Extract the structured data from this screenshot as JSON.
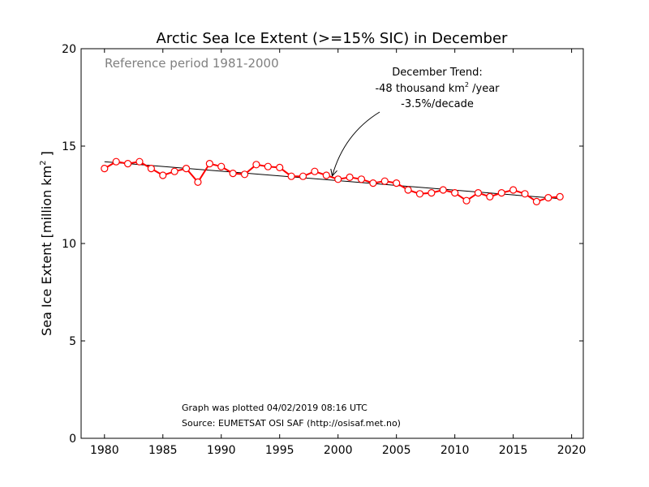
{
  "chart_data": {
    "type": "line",
    "title": "Arctic Sea Ice Extent (>=15% SIC) in December",
    "reference_text": "Reference period 1981-2000",
    "ylabel_main": "Sea Ice Extent [million km",
    "ylabel_sup": "2",
    "ylabel_end": " ]",
    "xlabel": "",
    "xlim": [
      1978,
      2021
    ],
    "ylim": [
      0,
      20
    ],
    "xticks": [
      1980,
      1985,
      1990,
      1995,
      2000,
      2005,
      2010,
      2015,
      2020
    ],
    "yticks": [
      0,
      5,
      10,
      15,
      20
    ],
    "grid": false,
    "series": [
      {
        "color": "#ff0000",
        "x": [
          1980,
          1981,
          1982,
          1983,
          1984,
          1985,
          1986,
          1987,
          1988,
          1989,
          1990,
          1991,
          1992,
          1993,
          1994,
          1995,
          1996,
          1997,
          1998,
          1999,
          2000,
          2001,
          2002,
          2003,
          2004,
          2005,
          2006,
          2007,
          2008,
          2009,
          2010,
          2011,
          2012,
          2013,
          2014,
          2015,
          2016,
          2017,
          2018,
          2019
        ],
        "y": [
          13.85,
          14.2,
          14.1,
          14.2,
          13.85,
          13.5,
          13.7,
          13.85,
          13.15,
          14.1,
          13.95,
          13.6,
          13.55,
          14.05,
          13.95,
          13.9,
          13.45,
          13.45,
          13.7,
          13.5,
          13.3,
          13.4,
          13.3,
          13.1,
          13.2,
          13.1,
          12.75,
          12.55,
          12.6,
          12.75,
          12.6,
          12.2,
          12.6,
          12.4,
          12.6,
          12.75,
          12.55,
          12.15,
          12.35,
          12.4
        ]
      }
    ],
    "trend": {
      "color": "#000000",
      "x": [
        1980,
        2019
      ],
      "y": [
        14.2,
        12.3
      ]
    },
    "annotation": {
      "line1": "December Trend:",
      "line2_main": "-48 thousand km",
      "line2_sup": "2",
      "line2_end": " /year",
      "line3": "-3.5%/decade",
      "arrow_target": [
        1999.5,
        13.3
      ]
    },
    "footer": {
      "line1": "Graph was plotted 04/02/2019 08:16 UTC",
      "line2": "Source: EUMETSAT OSI SAF (http://osisaf.met.no)"
    }
  }
}
